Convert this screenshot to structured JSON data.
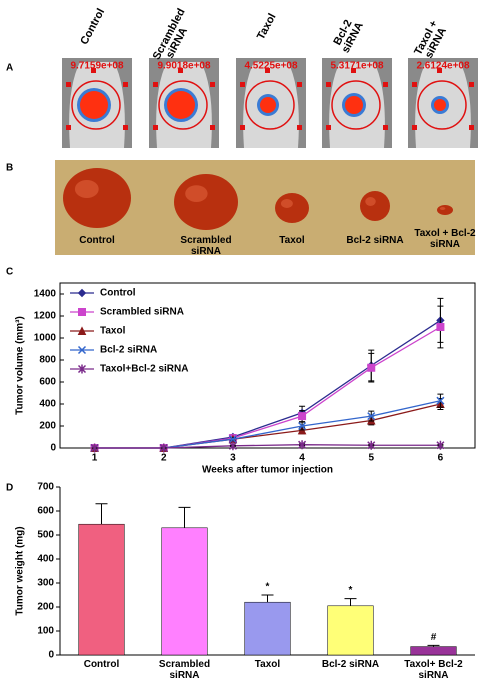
{
  "panel_labels": [
    "A",
    "B",
    "C",
    "D"
  ],
  "panel_a": {
    "columns": [
      "Control",
      "Scrambled siRNA",
      "Taxol",
      "Bcl-2 siRNA",
      "Taxol + siRNA"
    ],
    "readings": [
      "9.7159e+08",
      "9.9018e+08",
      "4.5225e+08",
      "5.3171e+08",
      "2.6124e+08"
    ]
  },
  "panel_b": {
    "labels": [
      "Control",
      "Scrambled siRNA",
      "Taxol",
      "Bcl-2 siRNA",
      "Taxol + Bcl-2 siRNA"
    ]
  },
  "chart_data": [
    {
      "type": "line",
      "y_label": "Tumor volume (mm³)",
      "x_label": "Weeks after tumor injection",
      "x": [
        1,
        2,
        3,
        4,
        5,
        6
      ],
      "xlim": [
        0.5,
        6.5
      ],
      "xticks": [
        1,
        2,
        3,
        4,
        5,
        6
      ],
      "ylim": [
        0,
        1500
      ],
      "yticks": [
        0,
        200,
        400,
        600,
        800,
        1000,
        1200,
        1400
      ],
      "legend": "upper-left",
      "series": [
        {
          "name": "Control",
          "color": "#2b2b8f",
          "marker": "diamond",
          "values": [
            0,
            0,
            100,
            320,
            750,
            1160
          ],
          "errors": [
            0,
            0,
            20,
            60,
            140,
            200
          ]
        },
        {
          "name": "Scrambled siRNA",
          "color": "#cc44cc",
          "marker": "square",
          "values": [
            0,
            0,
            90,
            290,
            730,
            1100
          ],
          "errors": [
            0,
            0,
            20,
            50,
            130,
            190
          ]
        },
        {
          "name": "Taxol",
          "color": "#8b1a1a",
          "marker": "triangle",
          "values": [
            0,
            0,
            80,
            160,
            250,
            400
          ],
          "errors": [
            0,
            0,
            15,
            30,
            40,
            50
          ]
        },
        {
          "name": "Bcl-2 siRNA",
          "color": "#3366cc",
          "marker": "x",
          "values": [
            0,
            0,
            80,
            200,
            290,
            430
          ],
          "errors": [
            0,
            0,
            15,
            35,
            45,
            60
          ]
        },
        {
          "name": "Taxol+Bcl-2 siRNA",
          "color": "#7a2a8a",
          "marker": "star",
          "values": [
            0,
            0,
            20,
            30,
            25,
            25
          ],
          "errors": [
            0,
            0,
            5,
            8,
            6,
            6
          ]
        }
      ]
    },
    {
      "type": "bar",
      "y_label": "Tumor weight (mg)",
      "categories": [
        "Control",
        "Scrambled siRNA",
        "Taxol",
        "Bcl-2 siRNA",
        "Taxol+ Bcl-2 siRNA"
      ],
      "values": [
        545,
        530,
        220,
        205,
        35
      ],
      "errors": [
        85,
        85,
        30,
        30,
        5
      ],
      "colors": [
        "#f06080",
        "#ff80ff",
        "#9999ee",
        "#ffff77",
        "#993399"
      ],
      "markers": [
        null,
        null,
        "*",
        "*",
        "#"
      ],
      "ylim": [
        0,
        700
      ],
      "yticks": [
        0,
        100,
        200,
        300,
        400,
        500,
        600,
        700
      ]
    }
  ]
}
